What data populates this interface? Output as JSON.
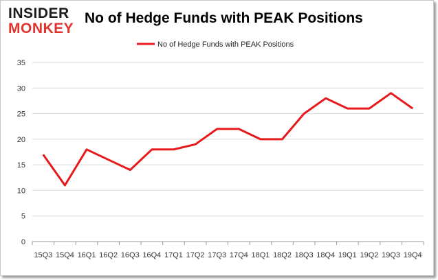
{
  "logo": {
    "top": "INSIDER",
    "bottom": "MONKEY"
  },
  "chart_data": {
    "type": "line",
    "title": "No of Hedge Funds with PEAK Positions",
    "categories": [
      "15Q3",
      "15Q4",
      "16Q1",
      "16Q2",
      "16Q3",
      "16Q4",
      "17Q1",
      "17Q2",
      "17Q3",
      "17Q4",
      "18Q1",
      "18Q2",
      "18Q3",
      "18Q4",
      "19Q1",
      "19Q2",
      "19Q3",
      "19Q4"
    ],
    "series": [
      {
        "name": "No of Hedge Funds with PEAK Positions",
        "values": [
          17,
          11,
          18,
          16,
          14,
          18,
          18,
          19,
          22,
          22,
          20,
          20,
          25,
          28,
          26,
          26,
          29,
          26
        ]
      }
    ],
    "ylim": [
      0,
      35
    ],
    "yticks": [
      0,
      5,
      10,
      15,
      20,
      25,
      30,
      35
    ],
    "grid": true,
    "legend": "top-center",
    "colors": {
      "line": "#e8191c",
      "grid": "#d9d9d9",
      "axis": "#999999"
    }
  }
}
